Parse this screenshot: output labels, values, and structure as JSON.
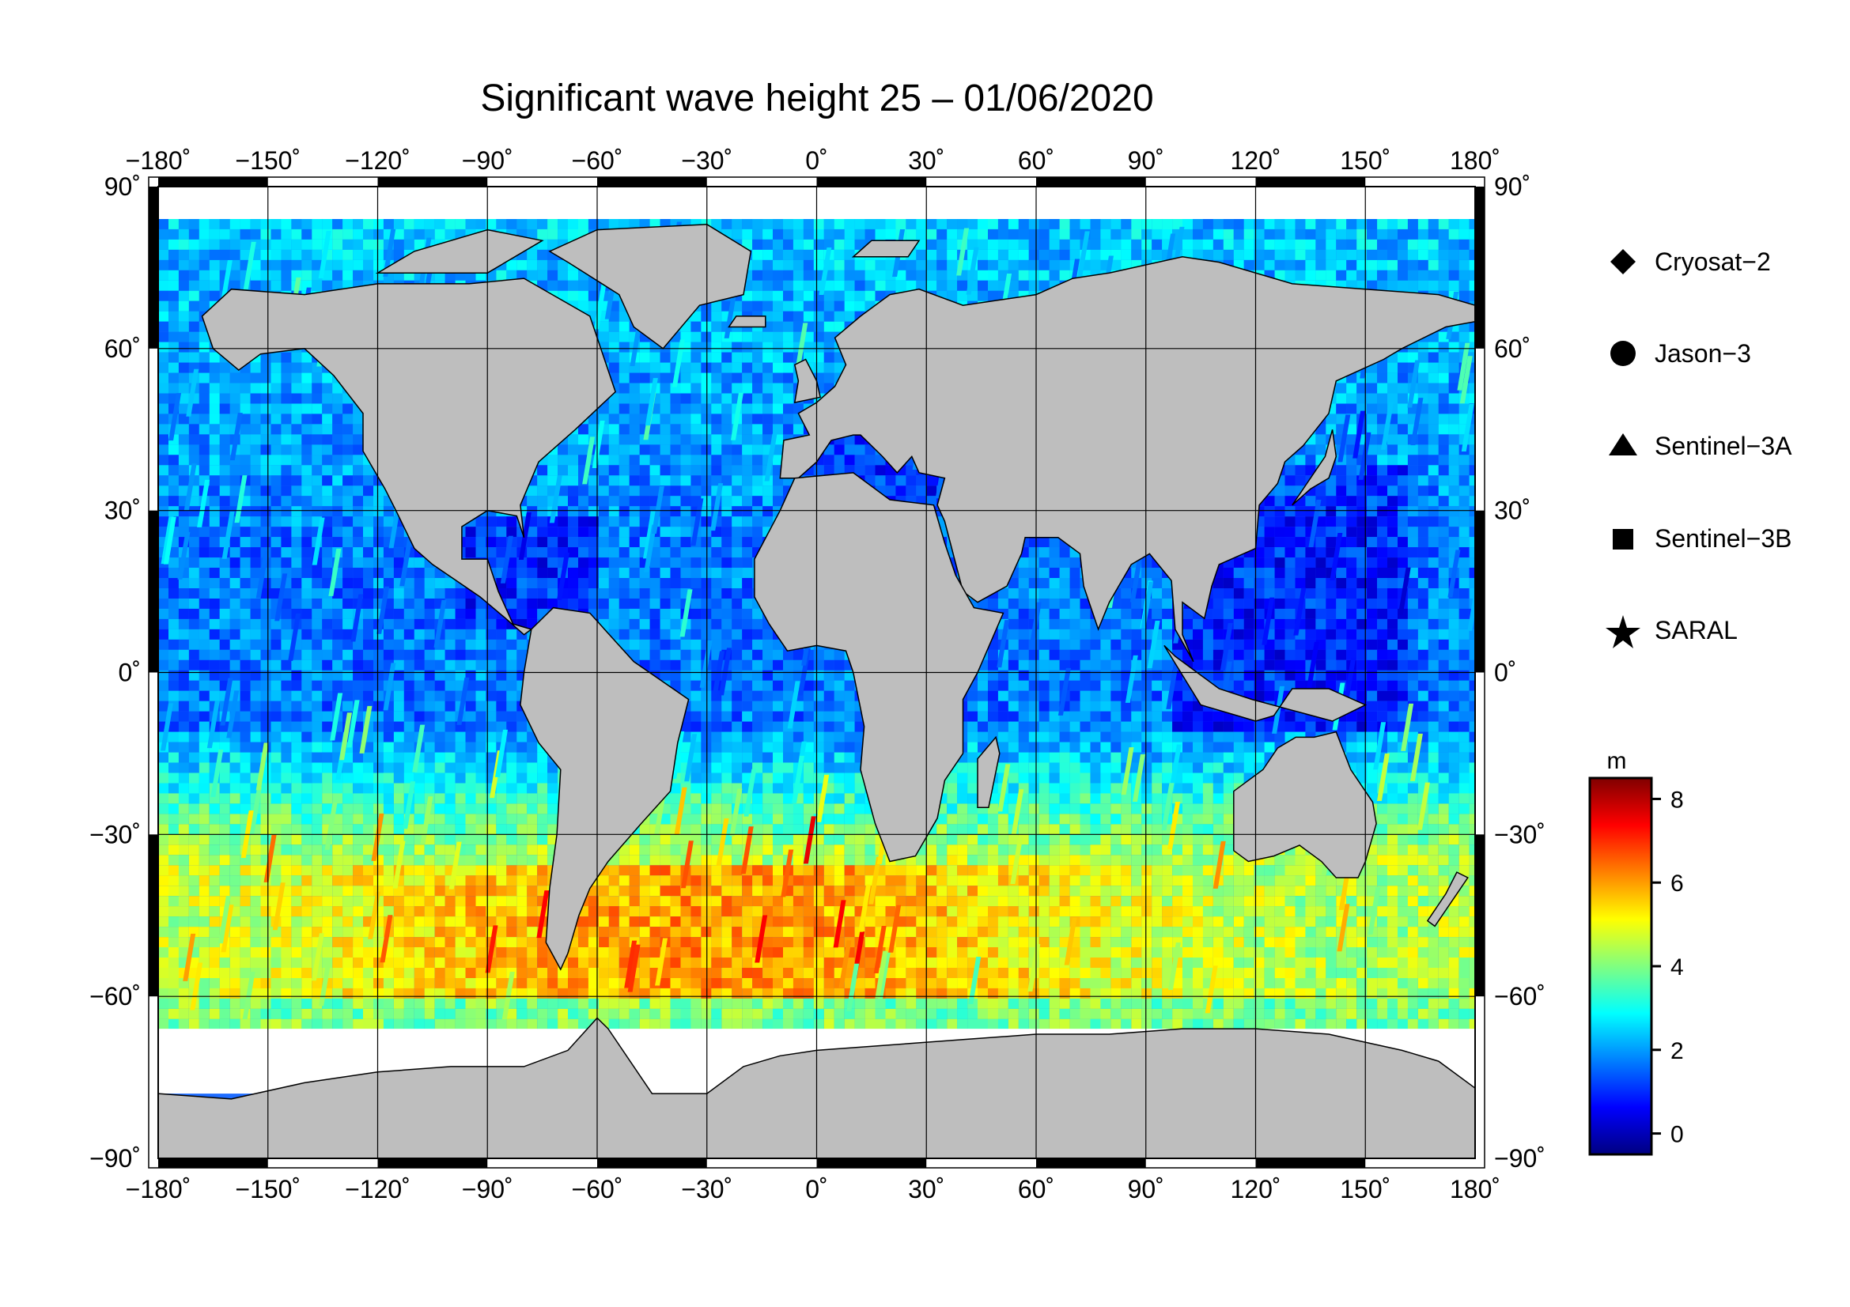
{
  "title": "Significant wave height 25 – 01/06/2020",
  "map": {
    "projection": "plate carree",
    "lon_range": [
      -180,
      180
    ],
    "lat_range": [
      -90,
      90
    ],
    "grid_step_lon": 30,
    "grid_step_lat": 30,
    "colors": {
      "land": "#bebebe",
      "ice": "#ffffff",
      "frame": "#000000",
      "grid": "#000000"
    },
    "lon_ticks": [
      "−180˚",
      "−150˚",
      "−120˚",
      "−90˚",
      "−60˚",
      "−30˚",
      "0˚",
      "30˚",
      "60˚",
      "90˚",
      "120˚",
      "150˚",
      "180˚"
    ],
    "lat_ticks": [
      "90˚",
      "60˚",
      "30˚",
      "0˚",
      "−30˚",
      "−60˚",
      "−90˚"
    ]
  },
  "legend": {
    "placement": "right",
    "items": [
      {
        "label": "Cryosat−2",
        "symbol": "diamond-icon"
      },
      {
        "label": "Jason−3",
        "symbol": "circle-icon"
      },
      {
        "label": "Sentinel−3A",
        "symbol": "triangle-icon"
      },
      {
        "label": "Sentinel−3B",
        "symbol": "square-icon"
      },
      {
        "label": "SARAL",
        "symbol": "star-icon"
      }
    ]
  },
  "colorbar": {
    "unit": "m",
    "min": -0.5,
    "max": 8.5,
    "ticks": [
      "8",
      "6",
      "4",
      "2",
      "0"
    ],
    "tick_values": [
      8,
      6,
      4,
      2,
      0
    ],
    "colormap": "jet",
    "stops": [
      "#000080",
      "#0000ff",
      "#0080ff",
      "#00ffff",
      "#80ff80",
      "#ffff00",
      "#ff8000",
      "#ff0000",
      "#800000"
    ]
  }
}
